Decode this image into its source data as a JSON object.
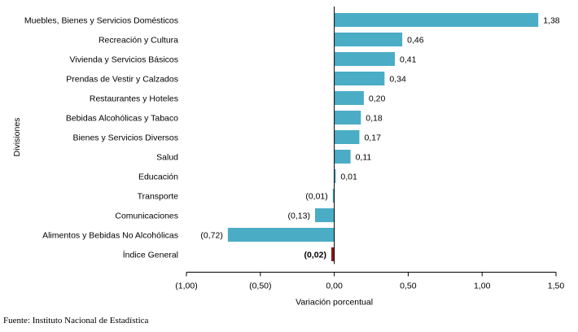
{
  "chart_data": {
    "type": "bar",
    "orientation": "horizontal",
    "categories": [
      "Muebles, Bienes y Servicios Domésticos",
      "Recreación y Cultura",
      "Vivienda y Servicios Básicos",
      "Prendas de Vestir y Calzados",
      "Restaurantes y Hoteles",
      "Bebidas Alcohólicas  y Tabaco",
      "Bienes y Servicios Diversos",
      "Salud",
      "Educación",
      "Transporte",
      "Comunicaciones",
      "Alimentos y Bebidas No Alcohólicas",
      "Índice General"
    ],
    "values": [
      1.38,
      0.46,
      0.41,
      0.34,
      0.2,
      0.18,
      0.17,
      0.11,
      0.01,
      -0.01,
      -0.13,
      -0.72,
      -0.02
    ],
    "value_labels": [
      "1,38",
      "0,46",
      "0,41",
      "0,34",
      "0,20",
      "0,18",
      "0,17",
      "0,11",
      "0,01",
      "(0,01)",
      "(0,13)",
      "(0,72)",
      "(0,02)"
    ],
    "bold_labels": [
      false,
      false,
      false,
      false,
      false,
      false,
      false,
      false,
      false,
      false,
      false,
      false,
      true
    ],
    "bar_colors": [
      "#4bacc6",
      "#4bacc6",
      "#4bacc6",
      "#4bacc6",
      "#4bacc6",
      "#4bacc6",
      "#4bacc6",
      "#4bacc6",
      "#4bacc6",
      "#4bacc6",
      "#4bacc6",
      "#4bacc6",
      "#8b1a1a"
    ],
    "xlabel": "Variación porcentual",
    "ylabel": "Divisiones",
    "xlim": [
      -1.0,
      1.5
    ],
    "xticks": [
      -1.0,
      -0.5,
      0.0,
      0.5,
      1.0,
      1.5
    ],
    "xtick_labels": [
      "(1,00)",
      "(0,50)",
      "0,00",
      "0,50",
      "1,00",
      "1,50"
    ],
    "grid": false
  },
  "source": "Fuente: Instituto Nacional de Estadística"
}
